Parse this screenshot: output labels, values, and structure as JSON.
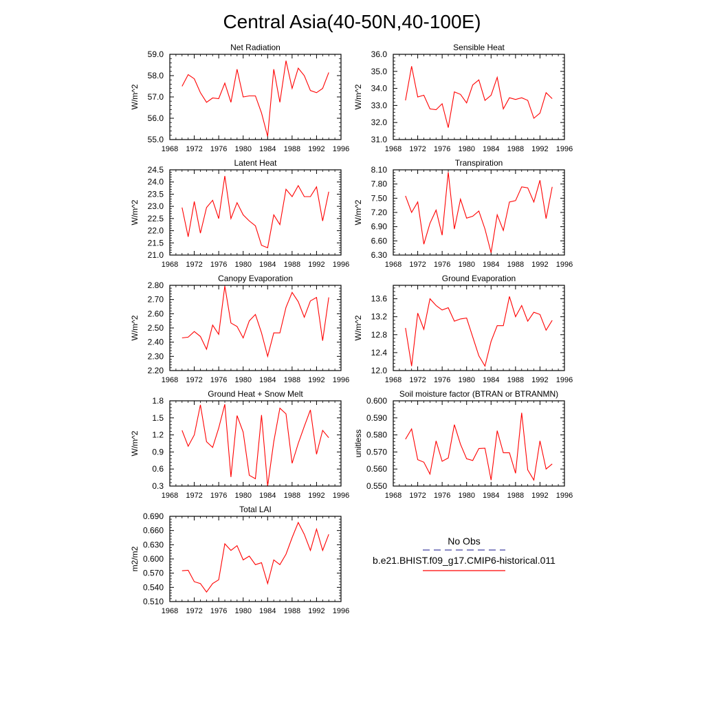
{
  "figure": {
    "title": "Central Asia(40-50N,40-100E)",
    "legend": {
      "obs_label": "No Obs",
      "obs_color": "#4040a0",
      "model_label": "b.e21.BHIST.f09_g17.CMIP6-historical.011",
      "model_color": "#ff0000"
    }
  },
  "chart_data": [
    {
      "type": "line",
      "title": "Net Radiation",
      "ylabel": "W/m^2",
      "xlim": [
        1968,
        1996
      ],
      "xticks": [
        "1968",
        "1972",
        "1976",
        "1980",
        "1984",
        "1988",
        "1992",
        "1996"
      ],
      "ylim": [
        55.0,
        59.0
      ],
      "yticks": [
        "55.0",
        "56.0",
        "57.0",
        "58.0",
        "59.0"
      ],
      "series": [
        {
          "color": "#ff0000",
          "x": [
            1970,
            1971,
            1972,
            1973,
            1974,
            1975,
            1976,
            1977,
            1978,
            1979,
            1980,
            1981,
            1982,
            1983,
            1984,
            1985,
            1986,
            1987,
            1988,
            1989,
            1990,
            1991,
            1992,
            1993,
            1994
          ],
          "values": [
            57.5,
            58.05,
            57.85,
            57.2,
            56.75,
            56.95,
            56.92,
            57.65,
            56.75,
            58.3,
            57.0,
            57.05,
            57.05,
            56.25,
            55.15,
            58.3,
            56.75,
            58.7,
            57.4,
            58.35,
            58.0,
            57.3,
            57.2,
            57.4,
            58.15
          ]
        }
      ]
    },
    {
      "type": "line",
      "title": "Sensible Heat",
      "ylabel": "W/m^2",
      "xlim": [
        1968,
        1996
      ],
      "xticks": [
        "1968",
        "1972",
        "1976",
        "1980",
        "1984",
        "1988",
        "1992",
        "1996"
      ],
      "ylim": [
        31.0,
        36.0
      ],
      "yticks": [
        "31.0",
        "32.0",
        "33.0",
        "34.0",
        "35.0",
        "36.0"
      ],
      "series": [
        {
          "color": "#ff0000",
          "x": [
            1970,
            1971,
            1972,
            1973,
            1974,
            1975,
            1976,
            1977,
            1978,
            1979,
            1980,
            1981,
            1982,
            1983,
            1984,
            1985,
            1986,
            1987,
            1988,
            1989,
            1990,
            1991,
            1992,
            1993,
            1994
          ],
          "values": [
            33.3,
            35.3,
            33.5,
            33.6,
            32.8,
            32.75,
            33.1,
            31.7,
            33.8,
            33.65,
            33.15,
            34.2,
            34.5,
            33.3,
            33.6,
            34.65,
            32.8,
            33.45,
            33.35,
            33.45,
            33.3,
            32.25,
            32.55,
            33.75,
            33.4
          ]
        }
      ]
    },
    {
      "type": "line",
      "title": "Latent Heat",
      "ylabel": "W/m^2",
      "xlim": [
        1968,
        1996
      ],
      "xticks": [
        "1968",
        "1972",
        "1976",
        "1980",
        "1984",
        "1988",
        "1992",
        "1996"
      ],
      "ylim": [
        21.0,
        24.5
      ],
      "yticks": [
        "21.0",
        "21.5",
        "22.0",
        "22.5",
        "23.0",
        "23.5",
        "24.0",
        "24.5"
      ],
      "series": [
        {
          "color": "#ff0000",
          "x": [
            1970,
            1971,
            1972,
            1973,
            1974,
            1975,
            1976,
            1977,
            1978,
            1979,
            1980,
            1981,
            1982,
            1983,
            1984,
            1985,
            1986,
            1987,
            1988,
            1989,
            1990,
            1991,
            1992,
            1993,
            1994
          ],
          "values": [
            22.95,
            21.75,
            23.2,
            21.9,
            22.95,
            23.25,
            22.5,
            24.25,
            22.5,
            23.15,
            22.65,
            22.4,
            22.2,
            21.4,
            21.3,
            22.65,
            22.25,
            23.7,
            23.4,
            23.85,
            23.4,
            23.4,
            23.8,
            22.4,
            23.6
          ]
        }
      ]
    },
    {
      "type": "line",
      "title": "Transpiration",
      "ylabel": "W/m^2",
      "xlim": [
        1968,
        1996
      ],
      "xticks": [
        "1968",
        "1972",
        "1976",
        "1980",
        "1984",
        "1988",
        "1992",
        "1996"
      ],
      "ylim": [
        6.3,
        8.1
      ],
      "yticks": [
        "6.30",
        "6.60",
        "6.90",
        "7.20",
        "7.50",
        "7.80",
        "8.10"
      ],
      "series": [
        {
          "color": "#ff0000",
          "x": [
            1970,
            1971,
            1972,
            1973,
            1974,
            1975,
            1976,
            1977,
            1978,
            1979,
            1980,
            1981,
            1982,
            1983,
            1984,
            1985,
            1986,
            1987,
            1988,
            1989,
            1990,
            1991,
            1992,
            1993,
            1994
          ],
          "values": [
            7.55,
            7.2,
            7.42,
            6.53,
            6.97,
            7.25,
            6.72,
            8.05,
            6.85,
            7.48,
            7.08,
            7.12,
            7.23,
            6.85,
            6.35,
            7.15,
            6.82,
            7.42,
            7.45,
            7.74,
            7.72,
            7.42,
            7.88,
            7.07,
            7.74
          ]
        }
      ]
    },
    {
      "type": "line",
      "title": "Canopy Evaporation",
      "ylabel": "W/m^2",
      "xlim": [
        1968,
        1996
      ],
      "xticks": [
        "1968",
        "1972",
        "1976",
        "1980",
        "1984",
        "1988",
        "1992",
        "1996"
      ],
      "ylim": [
        2.2,
        2.8
      ],
      "yticks": [
        "2.20",
        "2.30",
        "2.40",
        "2.50",
        "2.60",
        "2.70",
        "2.80"
      ],
      "series": [
        {
          "color": "#ff0000",
          "x": [
            1970,
            1971,
            1972,
            1973,
            1974,
            1975,
            1976,
            1977,
            1978,
            1979,
            1980,
            1981,
            1982,
            1983,
            1984,
            1985,
            1986,
            1987,
            1988,
            1989,
            1990,
            1991,
            1992,
            1993,
            1994
          ],
          "values": [
            2.43,
            2.435,
            2.475,
            2.44,
            2.35,
            2.52,
            2.455,
            2.795,
            2.535,
            2.51,
            2.43,
            2.55,
            2.595,
            2.465,
            2.3,
            2.465,
            2.465,
            2.645,
            2.75,
            2.685,
            2.575,
            2.69,
            2.715,
            2.41,
            2.715
          ]
        }
      ]
    },
    {
      "type": "line",
      "title": "Ground Evaporation",
      "ylabel": "W/m^2",
      "xlim": [
        1968,
        1996
      ],
      "xticks": [
        "1968",
        "1972",
        "1976",
        "1980",
        "1984",
        "1988",
        "1992",
        "1996"
      ],
      "ylim": [
        12.0,
        13.9
      ],
      "yticks": [
        "12.0",
        "12.4",
        "12.8",
        "13.2",
        "13.6"
      ],
      "series": [
        {
          "color": "#ff0000",
          "x": [
            1970,
            1971,
            1972,
            1973,
            1974,
            1975,
            1976,
            1977,
            1978,
            1979,
            1980,
            1981,
            1982,
            1983,
            1984,
            1985,
            1986,
            1987,
            1988,
            1989,
            1990,
            1991,
            1992,
            1993,
            1994
          ],
          "values": [
            12.95,
            12.1,
            13.28,
            12.92,
            13.6,
            13.45,
            13.35,
            13.4,
            13.1,
            13.15,
            13.17,
            12.75,
            12.33,
            12.1,
            12.65,
            13.0,
            13.0,
            13.65,
            13.2,
            13.45,
            13.1,
            13.3,
            13.25,
            12.9,
            13.12
          ]
        }
      ]
    },
    {
      "type": "line",
      "title": "Ground Heat + Snow Melt",
      "ylabel": "W/m^2",
      "xlim": [
        1968,
        1996
      ],
      "xticks": [
        "1968",
        "1972",
        "1976",
        "1980",
        "1984",
        "1988",
        "1992",
        "1996"
      ],
      "ylim": [
        0.3,
        1.8
      ],
      "yticks": [
        "0.3",
        "0.6",
        "0.9",
        "1.2",
        "1.5",
        "1.8"
      ],
      "series": [
        {
          "color": "#ff0000",
          "x": [
            1970,
            1971,
            1972,
            1973,
            1974,
            1975,
            1976,
            1977,
            1978,
            1979,
            1980,
            1981,
            1982,
            1983,
            1984,
            1985,
            1986,
            1987,
            1988,
            1989,
            1990,
            1991,
            1992,
            1993,
            1994
          ],
          "values": [
            1.28,
            1.0,
            1.2,
            1.73,
            1.08,
            0.98,
            1.32,
            1.74,
            0.46,
            1.54,
            1.25,
            0.49,
            0.43,
            1.55,
            0.3,
            1.08,
            1.67,
            1.57,
            0.7,
            1.05,
            1.35,
            1.64,
            0.86,
            1.28,
            1.15
          ]
        }
      ]
    },
    {
      "type": "line",
      "title": "Soil moisture factor (BTRAN or BTRANMN)",
      "ylabel": "unitless",
      "xlim": [
        1968,
        1996
      ],
      "xticks": [
        "1968",
        "1972",
        "1976",
        "1980",
        "1984",
        "1988",
        "1992",
        "1996"
      ],
      "ylim": [
        0.55,
        0.6
      ],
      "yticks": [
        "0.550",
        "0.560",
        "0.570",
        "0.580",
        "0.590",
        "0.600"
      ],
      "series": [
        {
          "color": "#ff0000",
          "x": [
            1970,
            1971,
            1972,
            1973,
            1974,
            1975,
            1976,
            1977,
            1978,
            1979,
            1980,
            1981,
            1982,
            1983,
            1984,
            1985,
            1986,
            1987,
            1988,
            1989,
            1990,
            1991,
            1992,
            1993,
            1994
          ],
          "values": [
            0.5775,
            0.5835,
            0.5655,
            0.564,
            0.557,
            0.5765,
            0.5645,
            0.5665,
            0.586,
            0.5745,
            0.566,
            0.565,
            0.572,
            0.5722,
            0.5535,
            0.5825,
            0.5695,
            0.5695,
            0.5575,
            0.593,
            0.5595,
            0.5535,
            0.5765,
            0.56,
            0.563
          ]
        }
      ]
    },
    {
      "type": "line",
      "title": "Total LAI",
      "ylabel": "m2/m2",
      "xlim": [
        1968,
        1996
      ],
      "xticks": [
        "1968",
        "1972",
        "1976",
        "1980",
        "1984",
        "1988",
        "1992",
        "1996"
      ],
      "ylim": [
        0.51,
        0.69
      ],
      "yticks": [
        "0.510",
        "0.540",
        "0.570",
        "0.600",
        "0.630",
        "0.660",
        "0.690"
      ],
      "series": [
        {
          "color": "#ff0000",
          "x": [
            1970,
            1971,
            1972,
            1973,
            1974,
            1975,
            1976,
            1977,
            1978,
            1979,
            1980,
            1981,
            1982,
            1983,
            1984,
            1985,
            1986,
            1987,
            1988,
            1989,
            1990,
            1991,
            1992,
            1993,
            1994
          ],
          "values": [
            0.575,
            0.576,
            0.552,
            0.548,
            0.53,
            0.548,
            0.556,
            0.632,
            0.618,
            0.628,
            0.598,
            0.606,
            0.588,
            0.592,
            0.548,
            0.598,
            0.588,
            0.61,
            0.645,
            0.677,
            0.652,
            0.618,
            0.663,
            0.618,
            0.652
          ]
        }
      ]
    }
  ]
}
